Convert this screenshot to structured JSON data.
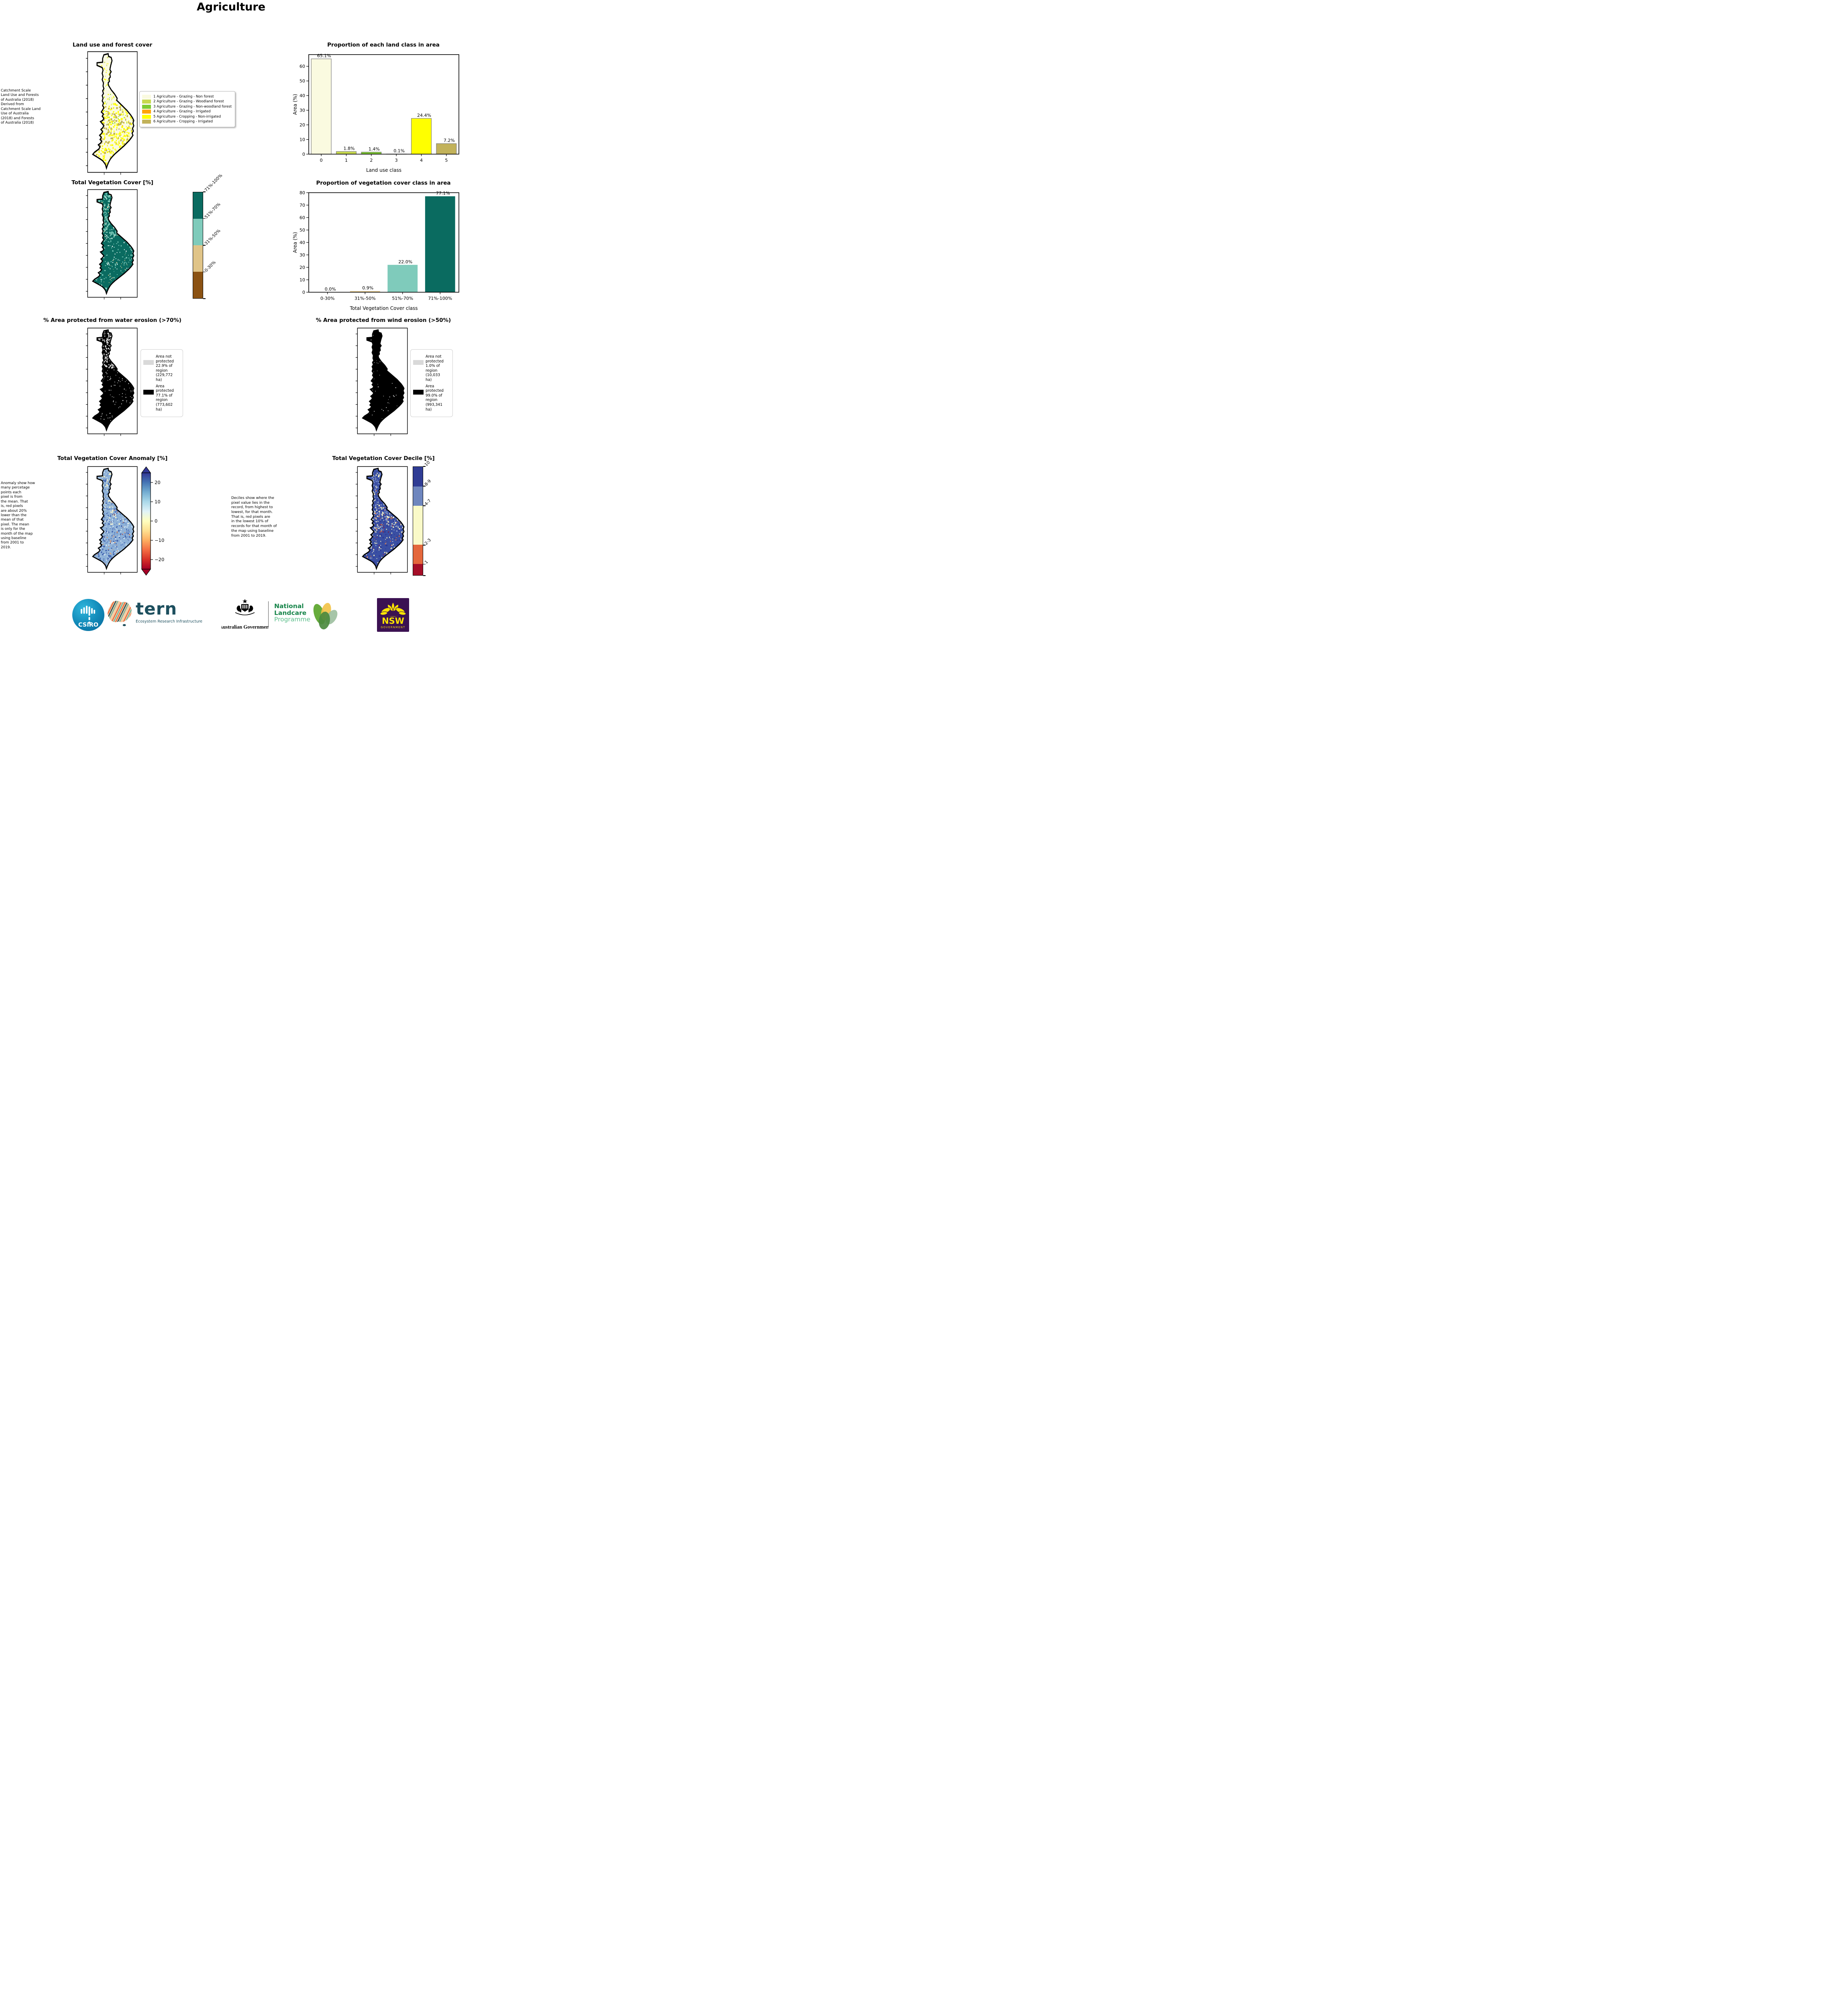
{
  "page": {
    "title": "Agriculture"
  },
  "chart_data": [
    {
      "type": "bar",
      "title": "Proportion of each land class in area",
      "categories": [
        "0",
        "1",
        "2",
        "3",
        "4",
        "5"
      ],
      "values": [
        65.1,
        1.8,
        1.4,
        0.1,
        24.4,
        7.2
      ],
      "bar_colors": [
        "#FAFAE0",
        "#C7D94F",
        "#7FCB31",
        "#FFA404",
        "#FFFF00",
        "#C2B25A"
      ],
      "bar_stroke": "#808080",
      "xlabel": "Land use class",
      "ylabel": "Area (%)",
      "ylim": [
        0,
        68
      ],
      "yticks": [
        0,
        10,
        20,
        30,
        40,
        50,
        60
      ],
      "grid": false,
      "legend_position": "none"
    },
    {
      "type": "bar",
      "title": "Proportion of vegetation cover class in area",
      "categories": [
        "0-30%",
        "31%-50%",
        "51%-70%",
        "71%-100%"
      ],
      "values": [
        0.0,
        0.9,
        22.0,
        77.1
      ],
      "bar_colors": [
        "#8B5213",
        "#E0C488",
        "#7FCBBB",
        "#0A6B60"
      ],
      "bar_stroke": "none",
      "xlabel": "Total Vegetation Cover class",
      "ylabel": "Area (%)",
      "ylim": [
        0,
        80
      ],
      "yticks": [
        0,
        10,
        20,
        30,
        40,
        50,
        60,
        70,
        80
      ],
      "grid": false,
      "legend_position": "none"
    }
  ],
  "panels": {
    "land_use": {
      "title": "Land use and forest cover",
      "note": " Catchment Scale\nLand Use and Forests\nof Australia (2018)\nDerived from\nCatchment Scale Land\nUse of Australia\n(2018) and Forests\nof Australia (2018)",
      "legend": [
        {
          "label": "1 Agriculture - Grazing - Non forest",
          "color": "#FAFAE0"
        },
        {
          "label": "2 Agriculture - Grazing - Woodland forest",
          "color": "#C7D94F"
        },
        {
          "label": "3 Agriculture - Grazing - Non-woodland forest",
          "color": "#7FCB31"
        },
        {
          "label": "4 Agriculture - Grazing - Irrigated",
          "color": "#FFA404"
        },
        {
          "label": "5 Agriculture - Cropping - Non-irrigated",
          "color": "#FFFF00"
        },
        {
          "label": "6 Agriculture - Cropping - Irrigated",
          "color": "#C2B25A"
        }
      ]
    },
    "veg_cover": {
      "title": "Total Vegetation Cover [%]",
      "colorbar": [
        {
          "label": "71%-100%",
          "color": "#0A6B60",
          "frac": 0.25
        },
        {
          "label": "51%-70%",
          "color": "#7FCBBB",
          "frac": 0.25
        },
        {
          "label": "31%-50%",
          "color": "#E0C488",
          "frac": 0.25
        },
        {
          "label": "0-30%",
          "color": "#8B5213",
          "frac": 0.25
        }
      ]
    },
    "water": {
      "title": "% Area protected from water erosion (>70%)",
      "legend": [
        {
          "color": "#D9D9D9",
          "label": "Area not protected 22.9% of region (229,772 ha)"
        },
        {
          "color": "#000000",
          "label": "Area protected 77.1% of region (773,602 ha)"
        }
      ]
    },
    "wind": {
      "title": "% Area protected from wind erosion (>50%)",
      "legend": [
        {
          "color": "#D9D9D9",
          "label": "Area not protected 1.0% of region (10,033 ha)"
        },
        {
          "color": "#000000",
          "label": "Area protected 99.0% of region (993,341 ha)"
        }
      ]
    },
    "anomaly": {
      "title": "Total Vegetation Cover Anomaly [%]",
      "note": "Anomaly show how\nmany percetage\npoints each\npixel is from\nthe mean. That\nis, red pixels\nare about 20%\nlower than the\nmean of that\npixel. The mean\nis only for the\nmonth of the map\nusing baseline\nfrom 2001 to\n2019.",
      "colorbar_ticks": [
        "20",
        "10",
        "0",
        "−10",
        "−20"
      ],
      "colorbar_tick_pos": [
        0.1,
        0.3,
        0.5,
        0.7,
        0.9
      ],
      "gradient": [
        "#313695",
        "#4575B4",
        "#74ADD1",
        "#ABD9E9",
        "#E0F3F8",
        "#FFFFBF",
        "#FEE090",
        "#FDAE61",
        "#F46D43",
        "#D73027",
        "#A50026"
      ]
    },
    "decile": {
      "title": "Total Vegetation Cover Decile [%]",
      "note": "Deciles show where the\npixel value lies in the\nrecord, from highest to\nlowest, for that month.\nThat is, red pixels are\nin the lowest 10% of\nrecords for that month of\nthe map using baseline\nfrom 2001 to 2019.",
      "colorbar": [
        {
          "label": "10",
          "color": "#2F3C94",
          "frac": 0.18
        },
        {
          "label": "8-9",
          "color": "#6E86BE",
          "frac": 0.18
        },
        {
          "label": "4-7",
          "color": "#FAFAC8",
          "frac": 0.36
        },
        {
          "label": "2-3",
          "color": "#E4673C",
          "frac": 0.175
        },
        {
          "label": "1",
          "color": "#A50E28",
          "frac": 0.105
        }
      ]
    }
  },
  "maps": {
    "landuse": {
      "base": "#FAFAE2",
      "speckles": [
        [
          "#FFFFFF",
          90,
          0,
          1,
          2.2
        ],
        [
          "#FFFF00",
          120,
          0.08,
          0.45,
          1.8
        ],
        [
          "#FFFF00",
          430,
          0.42,
          1,
          2.6
        ],
        [
          "#BFAF53",
          210,
          0.45,
          1,
          2.8
        ],
        [
          "#C7D94F",
          55,
          0.02,
          0.4,
          1.6
        ],
        [
          "#7FCB31",
          85,
          0.15,
          0.62,
          1.5
        ],
        [
          "#E89020",
          10,
          0.6,
          0.95,
          1.2
        ]
      ]
    },
    "vegcover": {
      "base": "#0A6B60",
      "speckles": [
        [
          "#7FCBBB",
          520,
          0,
          0.42,
          2.4
        ],
        [
          "#7FCBBB",
          200,
          0.42,
          1,
          2.0
        ],
        [
          "#FFFFFF",
          130,
          0,
          1,
          1.6
        ],
        [
          "#E0C488",
          60,
          0,
          0.45,
          1.4
        ],
        [
          "#E0C488",
          40,
          0.6,
          1,
          1.4
        ]
      ]
    },
    "water": {
      "base": "#000000",
      "speckles": [
        [
          "#D9D9D9",
          520,
          0,
          0.37,
          2.2
        ],
        [
          "#D9D9D9",
          60,
          0.37,
          0.7,
          1.4
        ],
        [
          "#FFFFFF",
          90,
          0.3,
          1,
          1.3
        ]
      ]
    },
    "wind": {
      "base": "#000000",
      "speckles": [
        [
          "#FFFFFF",
          70,
          0,
          1,
          1.2
        ],
        [
          "#D9D9D9",
          30,
          0.2,
          0.8,
          1.2
        ]
      ]
    },
    "anomaly": {
      "base": "#8FB2D8",
      "speckles": [
        [
          "#CFE2F0",
          300,
          0,
          1,
          2.2
        ],
        [
          "#F8F4C8",
          240,
          0,
          0.55,
          2.2
        ],
        [
          "#3D5FAE",
          420,
          0.1,
          1,
          2.2
        ],
        [
          "#6E8FC8",
          250,
          0,
          1,
          2.2
        ],
        [
          "#EC8C4E",
          70,
          0.15,
          1,
          1.6
        ],
        [
          "#C0392B",
          20,
          0.3,
          1,
          1.4
        ],
        [
          "#FFFFFF",
          60,
          0,
          1,
          1.5
        ]
      ]
    },
    "decile": {
      "base": "#3A4FA3",
      "speckles": [
        [
          "#2D3B96",
          300,
          0.3,
          1,
          2.4
        ],
        [
          "#7A90C8",
          380,
          0,
          0.6,
          2.3
        ],
        [
          "#F8F4C0",
          200,
          0,
          0.5,
          2.2
        ],
        [
          "#F8F4C0",
          160,
          0.5,
          1,
          2.0
        ],
        [
          "#E8713A",
          90,
          0.2,
          1,
          1.6
        ],
        [
          "#A50E28",
          25,
          0.3,
          1,
          1.5
        ],
        [
          "#FFFFFF",
          55,
          0,
          1,
          1.4
        ]
      ]
    }
  },
  "logos": {
    "csiro": "CSIRO",
    "tern": "tern",
    "tern_sub": "Ecosystem Research Infrastructure",
    "aus_gov": "Australian Government",
    "nlp_line1": "National",
    "nlp_line2": "Landcare",
    "nlp_line3": "Programme",
    "nsw": "NSW",
    "nsw_sub": "GOVERNMENT"
  }
}
